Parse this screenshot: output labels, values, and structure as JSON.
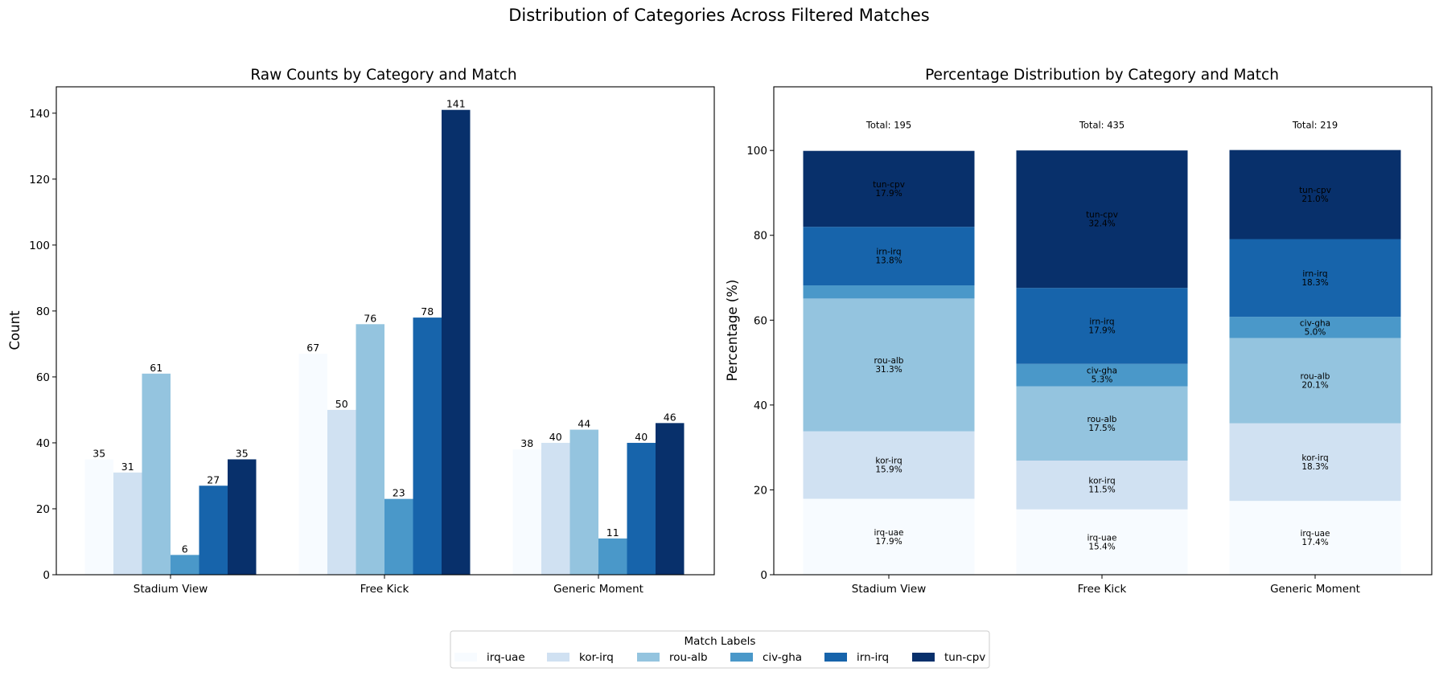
{
  "figure": {
    "title": "Distribution of Categories Across Filtered Matches"
  },
  "colors": {
    "irq-uae": "#f7fbff",
    "kor-irq": "#d0e1f2",
    "rou-alb": "#94c4df",
    "civ-gha": "#4a98c9",
    "irn-irq": "#1764ab",
    "tun-cpv": "#08306b"
  },
  "legend": {
    "title": "Match Labels",
    "placement": "bottom-center"
  },
  "chart_data": [
    {
      "type": "bar",
      "title": "Raw Counts by Category and Match",
      "xlabel": "",
      "ylabel": "Count",
      "ylim": [
        0,
        148
      ],
      "yticks": [
        0,
        20,
        40,
        60,
        80,
        100,
        120,
        140
      ],
      "categories": [
        "Stadium View",
        "Free Kick",
        "Generic Moment"
      ],
      "series": [
        {
          "name": "irq-uae",
          "values": [
            35,
            67,
            38
          ]
        },
        {
          "name": "kor-irq",
          "values": [
            31,
            50,
            40
          ]
        },
        {
          "name": "rou-alb",
          "values": [
            61,
            76,
            44
          ]
        },
        {
          "name": "civ-gha",
          "values": [
            6,
            23,
            11
          ]
        },
        {
          "name": "irn-irq",
          "values": [
            27,
            78,
            40
          ]
        },
        {
          "name": "tun-cpv",
          "values": [
            35,
            141,
            46
          ]
        }
      ],
      "grid": false
    },
    {
      "type": "bar",
      "stacked": true,
      "title": "Percentage Distribution by Category and Match",
      "xlabel": "",
      "ylabel": "Percentage (%)",
      "ylim": [
        0,
        115
      ],
      "yticks": [
        0,
        20,
        40,
        60,
        80,
        100
      ],
      "categories": [
        "Stadium View",
        "Free Kick",
        "Generic Moment"
      ],
      "totals": [
        "Total: 195",
        "Total: 435",
        "Total: 219"
      ],
      "series": [
        {
          "name": "irq-uae",
          "values": [
            17.9,
            15.4,
            17.4
          ],
          "labels": [
            "irq-uae\n17.9%",
            "irq-uae\n15.4%",
            "irq-uae\n17.4%"
          ]
        },
        {
          "name": "kor-irq",
          "values": [
            15.9,
            11.5,
            18.3
          ],
          "labels": [
            "kor-irq\n15.9%",
            "kor-irq\n11.5%",
            "kor-irq\n18.3%"
          ]
        },
        {
          "name": "rou-alb",
          "values": [
            31.3,
            17.5,
            20.1
          ],
          "labels": [
            "rou-alb\n31.3%",
            "rou-alb\n17.5%",
            "rou-alb\n20.1%"
          ]
        },
        {
          "name": "civ-gha",
          "values": [
            3.1,
            5.3,
            5.0
          ],
          "labels": [
            "",
            "civ-gha\n5.3%",
            "civ-gha\n5.0%"
          ]
        },
        {
          "name": "irn-irq",
          "values": [
            13.8,
            17.9,
            18.3
          ],
          "labels": [
            "irn-irq\n13.8%",
            "irn-irq\n17.9%",
            "irn-irq\n18.3%"
          ]
        },
        {
          "name": "tun-cpv",
          "values": [
            17.9,
            32.4,
            21.0
          ],
          "labels": [
            "tun-cpv\n17.9%",
            "tun-cpv\n32.4%",
            "tun-cpv\n21.0%"
          ]
        }
      ],
      "grid": false
    }
  ]
}
